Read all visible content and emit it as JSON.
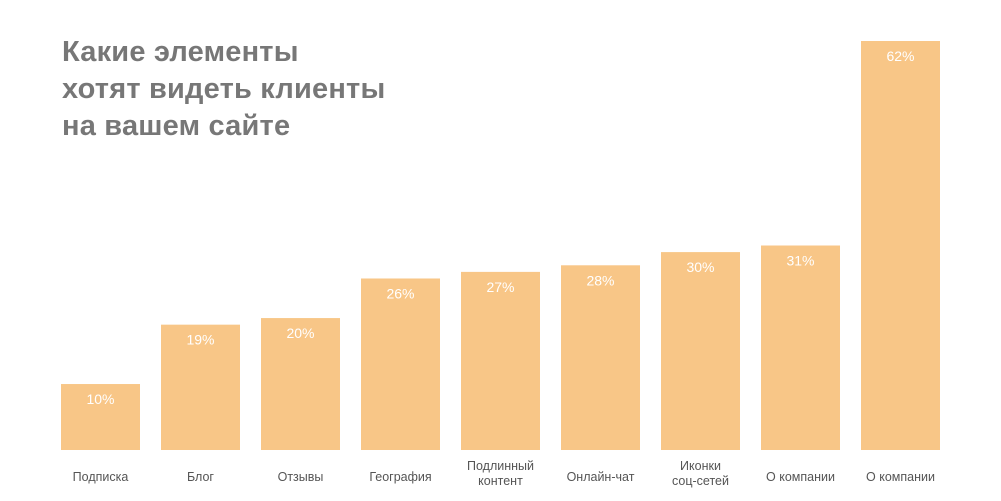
{
  "title_lines": [
    "Какие элементы",
    "хотят видеть клиенты",
    "на вашем сайте"
  ],
  "colors": {
    "bar": "#f8c687",
    "bar_label": "#ffffff",
    "title": "#777777",
    "tick_label": "#555555"
  },
  "chart_data": {
    "type": "bar",
    "title": "Какие элементы хотят видеть клиенты на вашем сайте",
    "xlabel": "",
    "ylabel": "",
    "categories": [
      [
        "Подписка"
      ],
      [
        "Блог"
      ],
      [
        "Отзывы"
      ],
      [
        "География"
      ],
      [
        "Подлинный",
        "контент"
      ],
      [
        "Онлайн-чат"
      ],
      [
        "Иконки",
        "соц-сетей"
      ],
      [
        "О компании"
      ],
      [
        "О компании"
      ]
    ],
    "values": [
      10,
      19,
      20,
      26,
      27,
      28,
      30,
      31,
      62
    ],
    "value_labels": [
      "10%",
      "19%",
      "20%",
      "26%",
      "27%",
      "28%",
      "30%",
      "31%",
      "62%"
    ],
    "ylim": [
      0,
      62
    ],
    "grid": false,
    "legend": "none"
  }
}
